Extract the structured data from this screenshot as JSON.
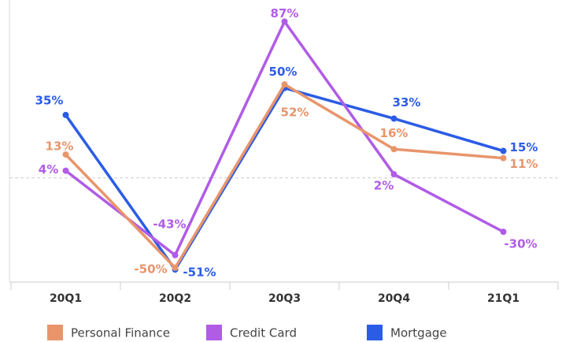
{
  "chart_data": {
    "type": "line",
    "categories": [
      "20Q1",
      "20Q2",
      "20Q3",
      "20Q4",
      "21Q1"
    ],
    "series": [
      {
        "name": "Personal Finance",
        "color": "#e8956b",
        "values": [
          13,
          -50,
          52,
          16,
          11
        ],
        "value_labels": [
          "13%",
          "-50%",
          "52%",
          "16%",
          "11%"
        ]
      },
      {
        "name": "Credit Card",
        "color": "#b05ce6",
        "values": [
          4,
          -43,
          87,
          2,
          -30
        ],
        "value_labels": [
          "4%",
          "-43%",
          "87%",
          "2%",
          "-30%"
        ]
      },
      {
        "name": "Mortgage",
        "color": "#2b5ce6",
        "values": [
          35,
          -51,
          50,
          33,
          15
        ],
        "value_labels": [
          "35%",
          "-51%",
          "50%",
          "33%",
          "15%"
        ]
      }
    ],
    "ylim": [
      -58,
      99
    ]
  }
}
